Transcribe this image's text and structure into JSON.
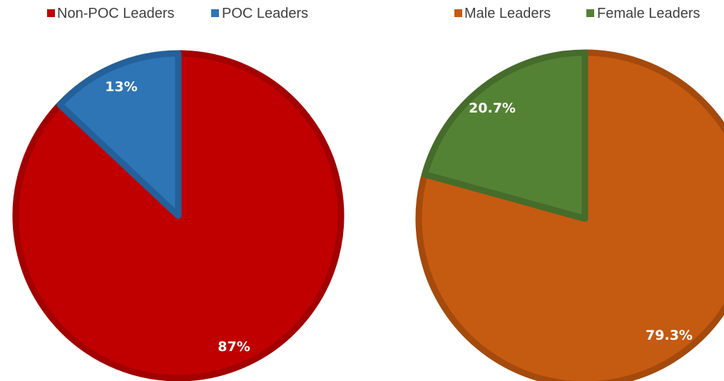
{
  "chart_data": [
    {
      "type": "pie",
      "title": "",
      "legend": "top",
      "slices": [
        {
          "name": "Non-POC Leaders",
          "value": 87,
          "label": "87%",
          "color": "#c00000",
          "edge": "#a30000"
        },
        {
          "name": "POC Leaders",
          "value": 13,
          "label": "13%",
          "color": "#2e75b6",
          "edge": "#24609a"
        }
      ]
    },
    {
      "type": "pie",
      "title": "",
      "legend": "top",
      "slices": [
        {
          "name": "Male Leaders",
          "value": 79.3,
          "label": "79.3%",
          "color": "#c55a11",
          "edge": "#a54a0d"
        },
        {
          "name": "Female Leaders",
          "value": 20.7,
          "label": "20.7%",
          "color": "#548235",
          "edge": "#456c2b"
        }
      ]
    }
  ]
}
